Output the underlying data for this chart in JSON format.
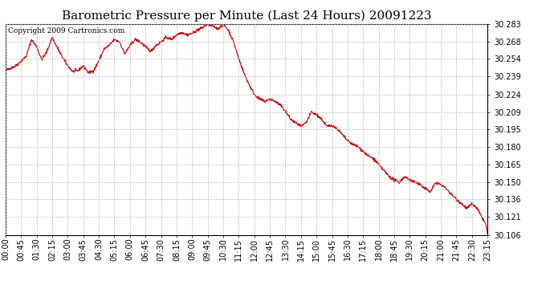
{
  "title": "Barometric Pressure per Minute (Last 24 Hours) 20091223",
  "copyright_text": "Copyright 2009 Cartronics.com",
  "line_color": "#cc0000",
  "background_color": "#ffffff",
  "grid_color": "#bbbbbb",
  "ylim": [
    30.106,
    30.283
  ],
  "yticks": [
    30.106,
    30.121,
    30.136,
    30.15,
    30.165,
    30.18,
    30.195,
    30.209,
    30.224,
    30.239,
    30.254,
    30.268,
    30.283
  ],
  "xtick_labels": [
    "00:00",
    "00:45",
    "01:30",
    "02:15",
    "03:00",
    "03:45",
    "04:30",
    "05:15",
    "06:00",
    "06:45",
    "07:30",
    "08:15",
    "09:00",
    "09:45",
    "10:30",
    "11:15",
    "12:00",
    "12:45",
    "13:30",
    "14:15",
    "15:00",
    "15:45",
    "16:30",
    "17:15",
    "18:00",
    "18:45",
    "19:30",
    "20:15",
    "21:00",
    "21:45",
    "22:30",
    "23:15"
  ],
  "title_fontsize": 11,
  "tick_fontsize": 7,
  "copyright_fontsize": 6.5,
  "keypoints": [
    [
      0,
      30.244
    ],
    [
      30,
      30.248
    ],
    [
      45,
      30.252
    ],
    [
      60,
      30.256
    ],
    [
      75,
      30.27
    ],
    [
      90,
      30.264
    ],
    [
      105,
      30.253
    ],
    [
      120,
      30.26
    ],
    [
      135,
      30.272
    ],
    [
      150,
      30.263
    ],
    [
      165,
      30.255
    ],
    [
      180,
      30.248
    ],
    [
      195,
      30.243
    ],
    [
      210,
      30.244
    ],
    [
      225,
      30.248
    ],
    [
      240,
      30.242
    ],
    [
      255,
      30.244
    ],
    [
      270,
      30.252
    ],
    [
      285,
      30.262
    ],
    [
      300,
      30.265
    ],
    [
      315,
      30.27
    ],
    [
      330,
      30.268
    ],
    [
      345,
      30.258
    ],
    [
      360,
      30.265
    ],
    [
      375,
      30.27
    ],
    [
      390,
      30.268
    ],
    [
      405,
      30.264
    ],
    [
      420,
      30.26
    ],
    [
      435,
      30.265
    ],
    [
      450,
      30.268
    ],
    [
      465,
      30.272
    ],
    [
      480,
      30.27
    ],
    [
      495,
      30.274
    ],
    [
      510,
      30.276
    ],
    [
      525,
      30.274
    ],
    [
      540,
      30.275
    ],
    [
      555,
      30.278
    ],
    [
      570,
      30.28
    ],
    [
      585,
      30.283
    ],
    [
      600,
      30.281
    ],
    [
      615,
      30.279
    ],
    [
      630,
      30.283
    ],
    [
      645,
      30.278
    ],
    [
      660,
      30.268
    ],
    [
      675,
      30.254
    ],
    [
      690,
      30.242
    ],
    [
      705,
      30.232
    ],
    [
      720,
      30.224
    ],
    [
      735,
      30.22
    ],
    [
      750,
      30.218
    ],
    [
      765,
      30.22
    ],
    [
      780,
      30.218
    ],
    [
      795,
      30.215
    ],
    [
      810,
      30.21
    ],
    [
      825,
      30.203
    ],
    [
      840,
      30.2
    ],
    [
      855,
      30.197
    ],
    [
      870,
      30.2
    ],
    [
      885,
      30.209
    ],
    [
      900,
      30.207
    ],
    [
      915,
      30.203
    ],
    [
      930,
      30.197
    ],
    [
      945,
      30.198
    ],
    [
      960,
      30.195
    ],
    [
      975,
      30.19
    ],
    [
      990,
      30.185
    ],
    [
      1005,
      30.182
    ],
    [
      1020,
      30.18
    ],
    [
      1035,
      30.176
    ],
    [
      1050,
      30.172
    ],
    [
      1065,
      30.17
    ],
    [
      1080,
      30.165
    ],
    [
      1095,
      30.16
    ],
    [
      1110,
      30.155
    ],
    [
      1125,
      30.152
    ],
    [
      1140,
      30.15
    ],
    [
      1155,
      30.155
    ],
    [
      1170,
      30.152
    ],
    [
      1185,
      30.15
    ],
    [
      1200,
      30.148
    ],
    [
      1215,
      30.145
    ],
    [
      1230,
      30.142
    ],
    [
      1245,
      30.15
    ],
    [
      1260,
      30.148
    ],
    [
      1275,
      30.145
    ],
    [
      1290,
      30.14
    ],
    [
      1305,
      30.136
    ],
    [
      1320,
      30.132
    ],
    [
      1335,
      30.128
    ],
    [
      1350,
      30.132
    ],
    [
      1365,
      30.128
    ],
    [
      1380,
      30.12
    ],
    [
      1390,
      30.115
    ],
    [
      1395,
      30.106
    ]
  ]
}
